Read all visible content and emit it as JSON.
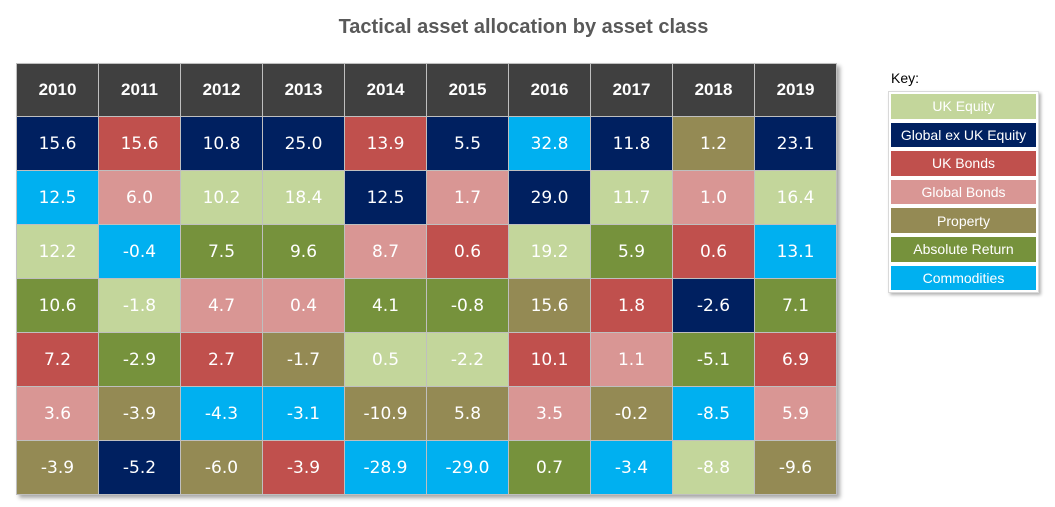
{
  "title": "Tactical asset allocation by asset class",
  "key_label": "Key:",
  "colors": {
    "UK Equity": "#c3d69b",
    "Global ex UK Equity": "#002060",
    "UK Bonds": "#c0504d",
    "Global Bonds": "#d99694",
    "Property": "#948a54",
    "Absolute Return": "#76923c",
    "Commodities": "#00b0f0"
  },
  "chart_data": {
    "type": "table",
    "title": "Tactical asset allocation by asset class",
    "columns": [
      "2010",
      "2011",
      "2012",
      "2013",
      "2014",
      "2015",
      "2016",
      "2017",
      "2018",
      "2019"
    ],
    "legend": [
      "UK Equity",
      "Global ex UK Equity",
      "UK Bonds",
      "Global Bonds",
      "Property",
      "Absolute Return",
      "Commodities"
    ],
    "legend_placement": "right",
    "cells": [
      [
        {
          "value": "15.6",
          "class": "Global ex UK Equity"
        },
        {
          "value": "12.5",
          "class": "Commodities"
        },
        {
          "value": "12.2",
          "class": "UK Equity"
        },
        {
          "value": "10.6",
          "class": "Absolute Return"
        },
        {
          "value": "7.2",
          "class": "UK Bonds"
        },
        {
          "value": "3.6",
          "class": "Global Bonds"
        },
        {
          "value": "-3.9",
          "class": "Property"
        }
      ],
      [
        {
          "value": "15.6",
          "class": "UK Bonds"
        },
        {
          "value": "6.0",
          "class": "Global Bonds"
        },
        {
          "value": "-0.4",
          "class": "Commodities"
        },
        {
          "value": "-1.8",
          "class": "UK Equity"
        },
        {
          "value": "-2.9",
          "class": "Absolute Return"
        },
        {
          "value": "-3.9",
          "class": "Property"
        },
        {
          "value": "-5.2",
          "class": "Global ex UK Equity"
        }
      ],
      [
        {
          "value": "10.8",
          "class": "Global ex UK Equity"
        },
        {
          "value": "10.2",
          "class": "UK Equity"
        },
        {
          "value": "7.5",
          "class": "Absolute Return"
        },
        {
          "value": "4.7",
          "class": "Global Bonds"
        },
        {
          "value": "2.7",
          "class": "UK Bonds"
        },
        {
          "value": "-4.3",
          "class": "Commodities"
        },
        {
          "value": "-6.0",
          "class": "Property"
        }
      ],
      [
        {
          "value": "25.0",
          "class": "Global ex UK Equity"
        },
        {
          "value": "18.4",
          "class": "UK Equity"
        },
        {
          "value": "9.6",
          "class": "Absolute Return"
        },
        {
          "value": "0.4",
          "class": "Global Bonds"
        },
        {
          "value": "-1.7",
          "class": "Property"
        },
        {
          "value": "-3.1",
          "class": "Commodities"
        },
        {
          "value": "-3.9",
          "class": "UK Bonds"
        }
      ],
      [
        {
          "value": "13.9",
          "class": "UK Bonds"
        },
        {
          "value": "12.5",
          "class": "Global ex UK Equity"
        },
        {
          "value": "8.7",
          "class": "Global Bonds"
        },
        {
          "value": "4.1",
          "class": "Absolute Return"
        },
        {
          "value": "0.5",
          "class": "UK Equity"
        },
        {
          "value": "-10.9",
          "class": "Property"
        },
        {
          "value": "-28.9",
          "class": "Commodities"
        }
      ],
      [
        {
          "value": "5.5",
          "class": "Global ex UK Equity"
        },
        {
          "value": "1.7",
          "class": "Global Bonds"
        },
        {
          "value": "0.6",
          "class": "UK Bonds"
        },
        {
          "value": "-0.8",
          "class": "Absolute Return"
        },
        {
          "value": "-2.2",
          "class": "UK Equity"
        },
        {
          "value": "5.8",
          "class": "Property"
        },
        {
          "value": "-29.0",
          "class": "Commodities"
        }
      ],
      [
        {
          "value": "32.8",
          "class": "Commodities"
        },
        {
          "value": "29.0",
          "class": "Global ex UK Equity"
        },
        {
          "value": "19.2",
          "class": "UK Equity"
        },
        {
          "value": "15.6",
          "class": "Property"
        },
        {
          "value": "10.1",
          "class": "UK Bonds"
        },
        {
          "value": "3.5",
          "class": "Global Bonds"
        },
        {
          "value": "0.7",
          "class": "Absolute Return"
        }
      ],
      [
        {
          "value": "11.8",
          "class": "Global ex UK Equity"
        },
        {
          "value": "11.7",
          "class": "UK Equity"
        },
        {
          "value": "5.9",
          "class": "Absolute Return"
        },
        {
          "value": "1.8",
          "class": "UK Bonds"
        },
        {
          "value": "1.1",
          "class": "Global Bonds"
        },
        {
          "value": "-0.2",
          "class": "Property"
        },
        {
          "value": "-3.4",
          "class": "Commodities"
        }
      ],
      [
        {
          "value": "1.2",
          "class": "Property"
        },
        {
          "value": "1.0",
          "class": "Global Bonds"
        },
        {
          "value": "0.6",
          "class": "UK Bonds"
        },
        {
          "value": "-2.6",
          "class": "Global ex UK Equity"
        },
        {
          "value": "-5.1",
          "class": "Absolute Return"
        },
        {
          "value": "-8.5",
          "class": "Commodities"
        },
        {
          "value": "-8.8",
          "class": "UK Equity"
        }
      ],
      [
        {
          "value": "23.1",
          "class": "Global ex UK Equity"
        },
        {
          "value": "16.4",
          "class": "UK Equity"
        },
        {
          "value": "13.1",
          "class": "Commodities"
        },
        {
          "value": "7.1",
          "class": "Absolute Return"
        },
        {
          "value": "6.9",
          "class": "UK Bonds"
        },
        {
          "value": "5.9",
          "class": "Global Bonds"
        },
        {
          "value": "-9.6",
          "class": "Property"
        }
      ]
    ]
  }
}
